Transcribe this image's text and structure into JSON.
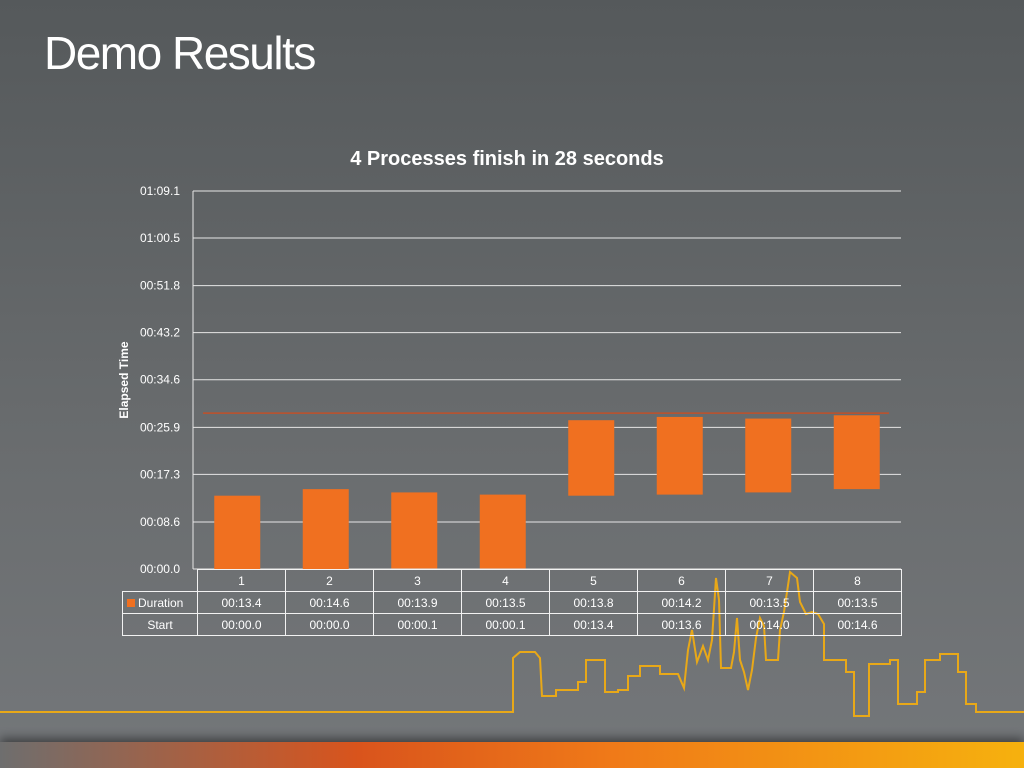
{
  "slide": {
    "title": "Demo Results"
  },
  "chart_data": {
    "type": "bar",
    "subtype": "floating-stacked",
    "title": "4 Processes finish in 28 seconds",
    "ylabel": "Elapsed Time",
    "xlabel": "",
    "ylim": [
      0,
      69.1
    ],
    "yticks": [
      "00:00.0",
      "00:08.6",
      "00:17.3",
      "00:25.9",
      "00:34.6",
      "00:43.2",
      "00:51.8",
      "01:00.5",
      "01:09.1"
    ],
    "ytick_values": [
      0,
      8.6,
      17.3,
      25.9,
      34.6,
      43.2,
      51.8,
      60.5,
      69.1
    ],
    "categories": [
      "1",
      "2",
      "3",
      "4",
      "5",
      "6",
      "7",
      "8"
    ],
    "series": [
      {
        "name": "Duration",
        "color": "#f07020",
        "values": [
          13.4,
          14.6,
          13.9,
          13.5,
          13.8,
          14.2,
          13.5,
          13.5
        ],
        "labels": [
          "00:13.4",
          "00:14.6",
          "00:13.9",
          "00:13.5",
          "00:13.8",
          "00:14.2",
          "00:13.5",
          "00:13.5"
        ]
      },
      {
        "name": "Start",
        "color": "none",
        "values": [
          0.0,
          0.0,
          0.1,
          0.1,
          13.4,
          13.6,
          14.0,
          14.6
        ],
        "labels": [
          "00:00.0",
          "00:00.0",
          "00:00.1",
          "00:00.1",
          "00:13.4",
          "00:13.6",
          "00:14.0",
          "00:14.6"
        ]
      }
    ],
    "reference_line": {
      "value": 28.5,
      "color": "#c0502a"
    },
    "grid": true,
    "legend": "data-table"
  }
}
